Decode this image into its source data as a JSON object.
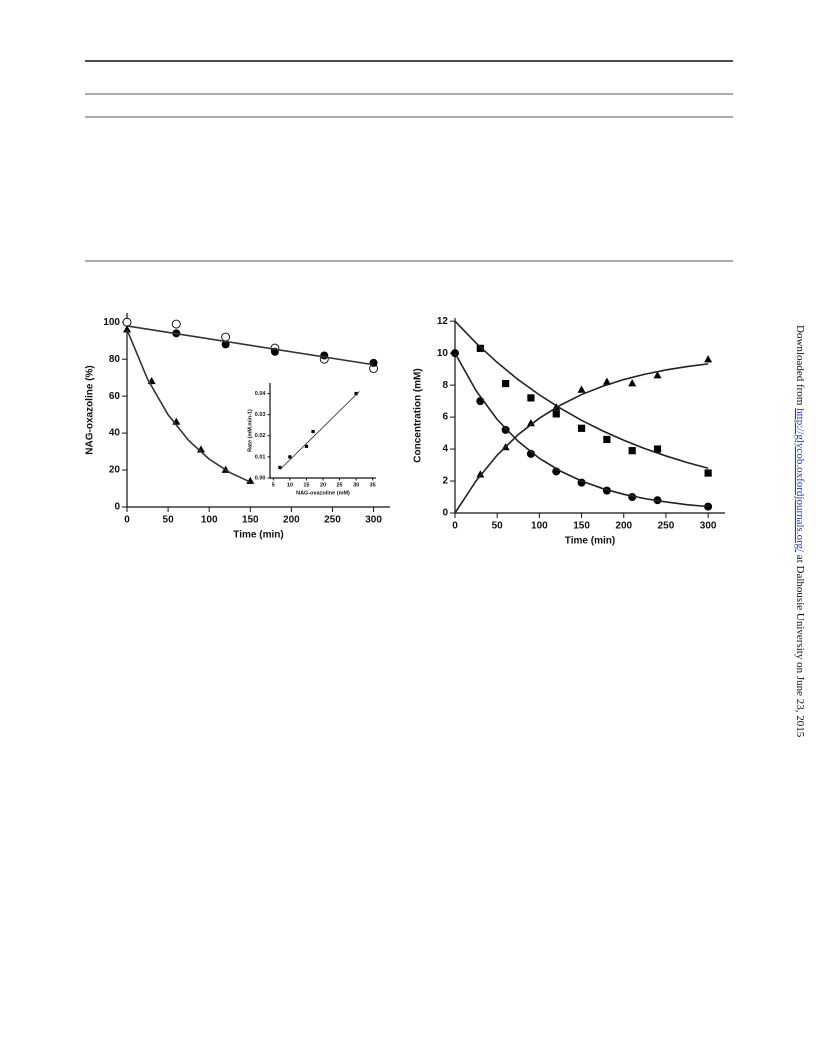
{
  "chart_data": [
    {
      "type": "scatter",
      "xlabel": "Time (min)",
      "ylabel": "NAG-oxazoline (%)",
      "xlim": [
        0,
        320
      ],
      "ylim": [
        0,
        105
      ],
      "xticks": [
        0,
        50,
        100,
        150,
        200,
        250,
        300
      ],
      "yticks": [
        0,
        20,
        40,
        60,
        80,
        100
      ],
      "series": [
        {
          "marker": "circle-open",
          "color": "#000000",
          "x": [
            0,
            60,
            120,
            180,
            240,
            300
          ],
          "values": [
            100,
            99,
            92,
            86,
            80,
            75
          ]
        },
        {
          "marker": "circle",
          "color": "#000000",
          "x": [
            60,
            120,
            180,
            240,
            300
          ],
          "values": [
            94,
            88,
            84,
            82,
            78
          ]
        },
        {
          "marker": "triangle",
          "color": "#000000",
          "x": [
            0,
            30,
            60,
            90,
            120,
            150
          ],
          "values": [
            96,
            68,
            46,
            31,
            20,
            14
          ]
        },
        {
          "marker": "line",
          "color": "#333333",
          "x": [
            0,
            300
          ],
          "values": [
            98,
            77
          ]
        },
        {
          "marker": "line",
          "color": "#333333",
          "x": [
            0,
            25,
            50,
            75,
            100,
            125,
            150
          ],
          "values": [
            96,
            69.2,
            49.9,
            36.0,
            25.9,
            18.7,
            13.5
          ]
        }
      ]
    },
    {
      "type": "scatter",
      "xlabel": "NAG-oxazoline (mM)",
      "ylabel": "Rate (mM.min-1)",
      "xlim": [
        4,
        36
      ],
      "ylim": [
        0,
        0.045
      ],
      "xticks": [
        5,
        10,
        15,
        20,
        25,
        30,
        35
      ],
      "yticks": [
        {
          "value": 0,
          "label": "0.00"
        },
        0.01,
        0.02,
        0.03,
        0.04
      ],
      "series": [
        {
          "marker": "square",
          "color": "#000000",
          "x": [
            7,
            10,
            15,
            17,
            30
          ],
          "values": [
            0.005,
            0.01,
            0.015,
            0.022,
            0.04
          ]
        },
        {
          "marker": "line",
          "color": "#333333",
          "x": [
            7,
            31
          ],
          "values": [
            0.004,
            0.041
          ]
        }
      ]
    },
    {
      "type": "scatter",
      "xlabel": "Time (min)",
      "ylabel": "Concentration (mM)",
      "xlim": [
        0,
        320
      ],
      "ylim": [
        0,
        12.2
      ],
      "xticks": [
        0,
        50,
        100,
        150,
        200,
        250,
        300
      ],
      "yticks": [
        0,
        2,
        4,
        6,
        8,
        10,
        12
      ],
      "series": [
        {
          "marker": "square",
          "color": "#000000",
          "x": [
            30,
            60,
            90,
            120,
            150,
            180,
            210,
            240,
            300
          ],
          "values": [
            10.3,
            8.1,
            7.2,
            6.2,
            5.3,
            4.6,
            3.9,
            4.0,
            2.5
          ]
        },
        {
          "marker": "circle",
          "color": "#000000",
          "x": [
            0,
            30,
            60,
            90,
            120,
            150,
            180,
            210,
            240,
            300
          ],
          "values": [
            10,
            7,
            5.2,
            3.7,
            2.6,
            1.9,
            1.4,
            1.0,
            0.8,
            0.4
          ]
        },
        {
          "marker": "triangle",
          "color": "#000000",
          "x": [
            30,
            60,
            90,
            120,
            150,
            180,
            210,
            240,
            300
          ],
          "values": [
            2.4,
            4.1,
            5.6,
            6.6,
            7.7,
            8.2,
            8.1,
            8.6,
            9.6
          ]
        },
        {
          "marker": "line",
          "color": "#222222",
          "x": [
            0,
            25,
            50,
            75,
            100,
            125,
            150,
            175,
            200,
            225,
            250,
            275,
            300
          ],
          "values": [
            12,
            10.63,
            9.42,
            8.34,
            7.39,
            6.55,
            5.8,
            5.14,
            4.55,
            4.03,
            3.57,
            3.16,
            2.8
          ]
        },
        {
          "marker": "line",
          "color": "#222222",
          "x": [
            0,
            25,
            50,
            75,
            100,
            125,
            150,
            175,
            200,
            225,
            250,
            275,
            300
          ],
          "values": [
            10,
            7.65,
            5.85,
            4.48,
            3.42,
            2.62,
            2.0,
            1.53,
            1.17,
            0.9,
            0.69,
            0.52,
            0.4
          ]
        },
        {
          "marker": "line",
          "color": "#222222",
          "x": [
            0,
            25,
            50,
            75,
            100,
            125,
            150,
            175,
            200,
            225,
            250,
            275,
            300
          ],
          "values": [
            0,
            2.01,
            3.62,
            4.91,
            5.93,
            6.75,
            7.41,
            7.93,
            8.35,
            8.68,
            8.95,
            9.16,
            9.33
          ]
        }
      ]
    }
  ],
  "side_note": {
    "prefix": "Downloaded from ",
    "link": "http://glycob.oxfordjournals.org/",
    "suffix": " at Dalhousie University on June 23, 2015"
  }
}
